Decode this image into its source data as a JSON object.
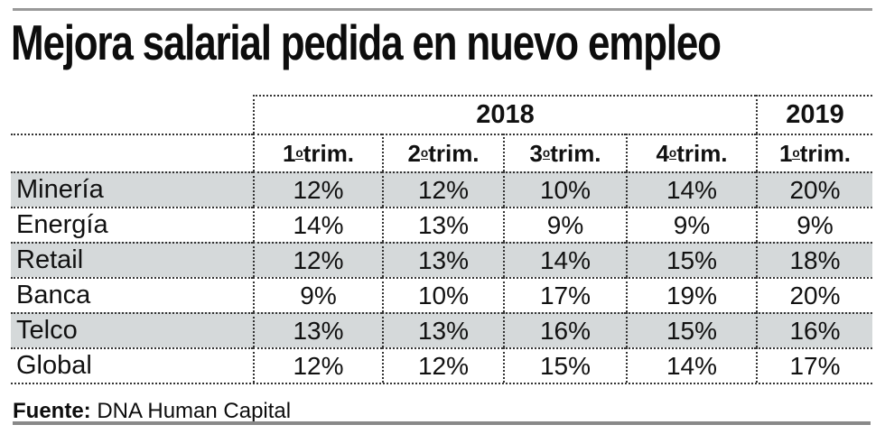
{
  "page": {
    "title": "Mejora salarial pedida en nuevo empleo",
    "source": {
      "label": "Fuente:",
      "text": "DNA Human Capital"
    }
  },
  "chart_data": {
    "type": "table",
    "title": "Mejora salarial pedida en nuevo empleo",
    "unit": "%",
    "year_groups": [
      {
        "label": "2018",
        "span": 4
      },
      {
        "label": "2019",
        "span": 1
      }
    ],
    "quarters": [
      "1ºtrim.",
      "2º trim.",
      "3ºtrim.",
      "4ºtrim.",
      "1ºtrim."
    ],
    "rows": [
      {
        "label": "Minería",
        "values": [
          12,
          12,
          10,
          14,
          20
        ]
      },
      {
        "label": "Energía",
        "values": [
          14,
          13,
          9,
          9,
          9
        ]
      },
      {
        "label": "Retail",
        "values": [
          12,
          13,
          14,
          15,
          18
        ]
      },
      {
        "label": "Banca",
        "values": [
          9,
          10,
          17,
          19,
          20
        ]
      },
      {
        "label": "Telco",
        "values": [
          13,
          13,
          16,
          15,
          16
        ]
      },
      {
        "label": "Global",
        "values": [
          12,
          12,
          15,
          14,
          17
        ]
      }
    ],
    "source": "DNA Human Capital",
    "layout": {
      "striped_rows": [
        "Minería",
        "Retail",
        "Telco"
      ],
      "grid_style": "dotted",
      "legend_position": "none"
    }
  },
  "colors": {
    "text": "#0d0d0d",
    "row_shade": "#d5d9da",
    "dotted_line": "#333333",
    "top_rule": "#999999",
    "bottom_rule": "#898989"
  }
}
